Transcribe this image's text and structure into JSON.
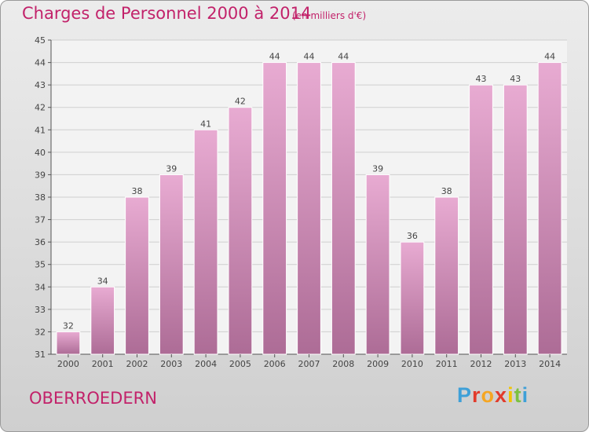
{
  "header": {
    "title": "Charges de Personnel 2000 à 2014",
    "subtitle": "(en milliers d'€)"
  },
  "footer": {
    "town": "OBERROEDERN",
    "logo_letters": [
      "P",
      "r",
      "o",
      "x",
      "i",
      "t",
      "i"
    ],
    "logo_colors": [
      "#3fa0d8",
      "#e23b2b",
      "#f5a623",
      "#e23b2b",
      "#f2c300",
      "#7cc142",
      "#3fa0d8"
    ]
  },
  "colors": {
    "title": "#c2226a",
    "bar_top": "#e8abd2",
    "bar_bottom": "#ad6c96",
    "label": "#444444"
  },
  "chart_data": {
    "type": "bar",
    "title": "Charges de Personnel 2000 à 2014",
    "subtitle": "(en milliers d'€)",
    "categories": [
      "2000",
      "2001",
      "2002",
      "2003",
      "2004",
      "2005",
      "2006",
      "2007",
      "2008",
      "2009",
      "2010",
      "2011",
      "2012",
      "2013",
      "2014"
    ],
    "values": [
      32,
      34,
      38,
      39,
      41,
      42,
      44,
      44,
      44,
      39,
      36,
      38,
      43,
      43,
      44
    ],
    "ylim": [
      31,
      45
    ],
    "yticks": [
      31,
      32,
      33,
      34,
      35,
      36,
      37,
      38,
      39,
      40,
      41,
      42,
      43,
      44,
      45
    ],
    "grid": true,
    "legend": "none"
  }
}
